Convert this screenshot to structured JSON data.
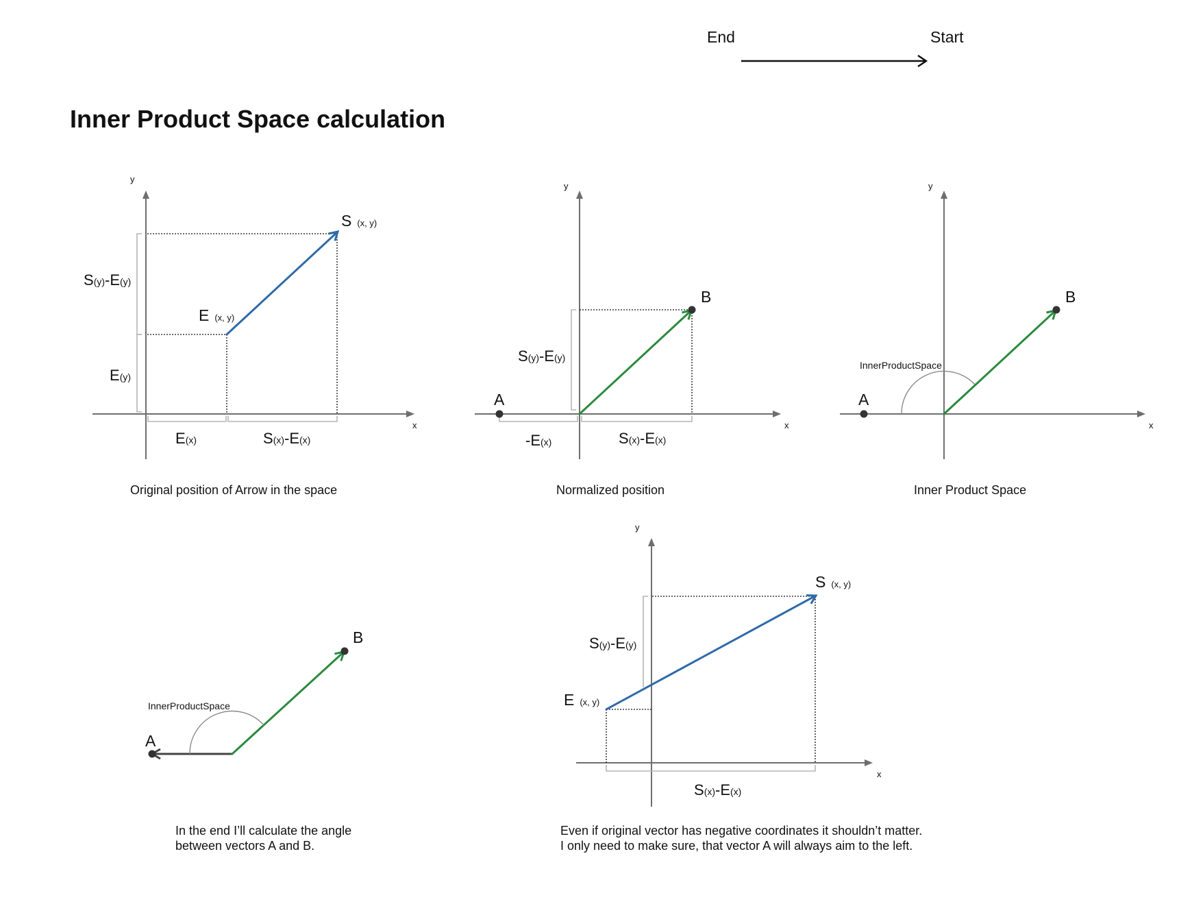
{
  "title": "Inner Product Space calculation",
  "legend": {
    "end_label": "End",
    "start_label": "Start"
  },
  "axis_labels": {
    "x": "x",
    "y": "y"
  },
  "points": {
    "A": "A",
    "B": "B",
    "S": "S",
    "E": "E",
    "coords": "(x, y)"
  },
  "expressions": {
    "sy_ey": {
      "main1": "S",
      "sub1": "(y)",
      "main2": "-E",
      "sub2": "(y)"
    },
    "ey": {
      "main1": "E",
      "sub1": "(y)"
    },
    "ex": {
      "main1": "E",
      "sub1": "(x)"
    },
    "sx_ex": {
      "main1": "S",
      "sub1": "(x)",
      "main2": "-E",
      "sub2": "(x)"
    },
    "neg_ex": {
      "main1": "-E",
      "sub1": "(x)"
    }
  },
  "angle_label": "InnerProductSpace",
  "captions": {
    "panel1": "Original position of Arrow in the space",
    "panel2": "Normalized position",
    "panel3": "Inner Product Space",
    "panel4_line1": "In the end I’ll calculate the angle",
    "panel4_line2": "between vectors A and B.",
    "panel5_line1": "Even if original vector has negative coordinates it shouldn’t matter.",
    "panel5_line2": "I only need to make sure, that vector A will always aim to the left."
  },
  "colors": {
    "vector_original": "#2f6aa8",
    "vector_normalized": "#2b8a3e",
    "axis": "#6e6e6e",
    "brace": "#b5b5b5"
  }
}
